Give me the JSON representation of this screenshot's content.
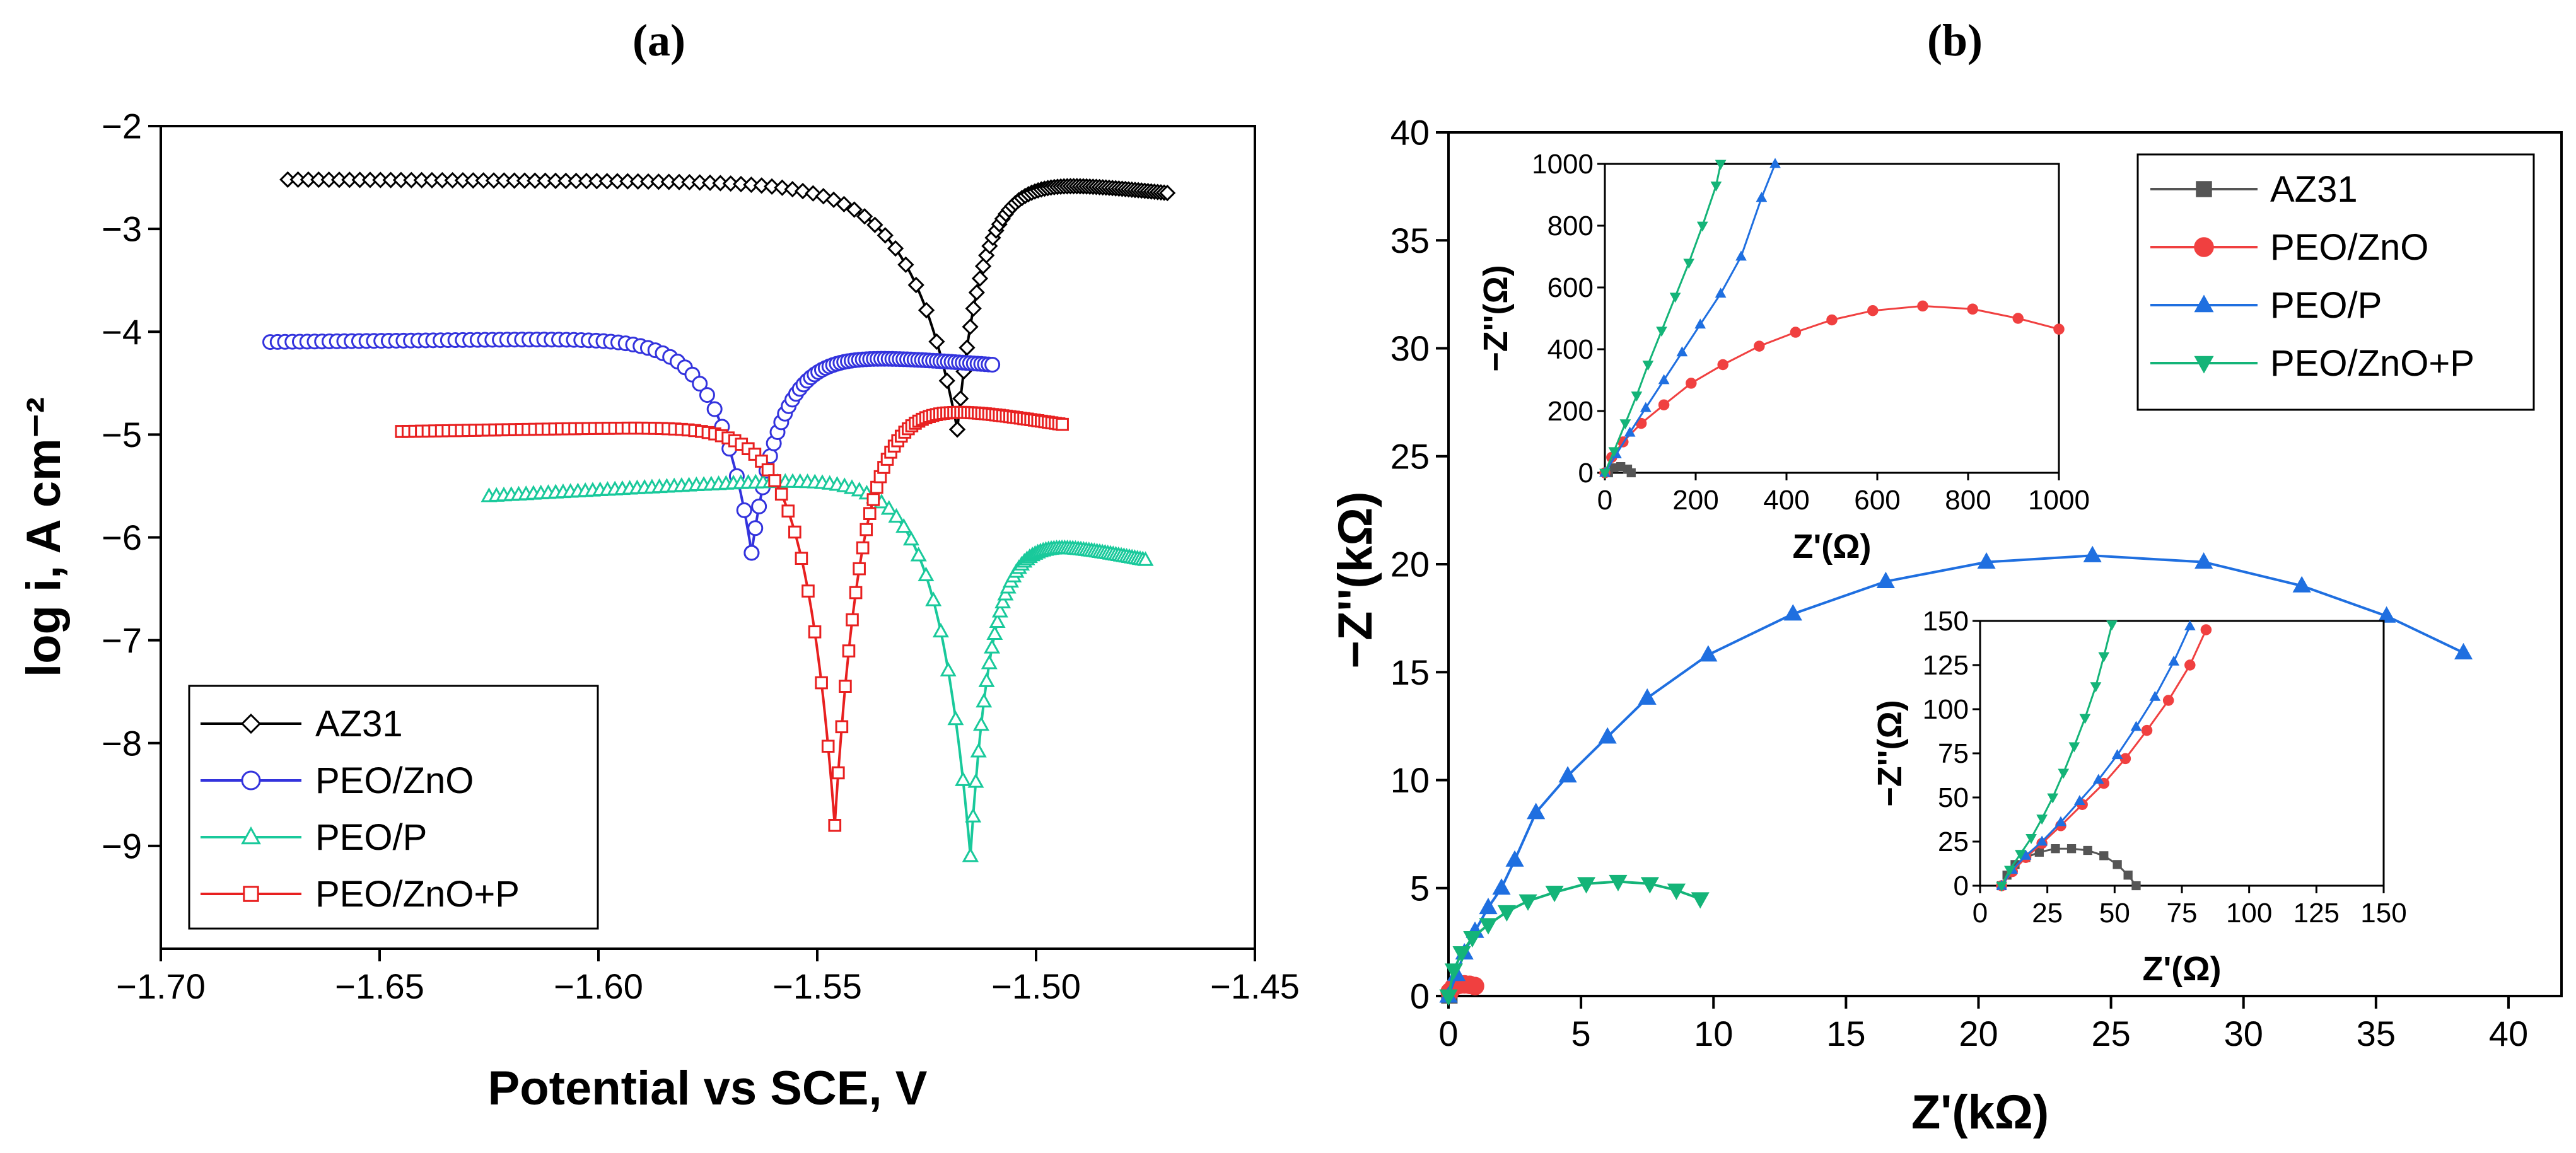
{
  "chart_data": [
    {
      "panel_label": "(a)",
      "type": "line",
      "title": "",
      "xlabel": "Potential vs SCE, V",
      "ylabel": "log i, A cm⁻²",
      "xlim": [
        -1.7,
        -1.45
      ],
      "ylim": [
        -10,
        -2
      ],
      "xticks": [
        -1.7,
        -1.65,
        -1.6,
        -1.55,
        -1.5,
        -1.45
      ],
      "xtick_labels": [
        "−1.70",
        "−1.65",
        "−1.60",
        "−1.55",
        "−1.50",
        "−1.45"
      ],
      "yticks": [
        -2,
        -3,
        -4,
        -5,
        -6,
        -7,
        -8,
        -9
      ],
      "ytick_labels": [
        "−2",
        "−3",
        "−4",
        "−5",
        "−6",
        "−7",
        "−8",
        "−9"
      ],
      "legend": "bottom-left",
      "series": [
        {
          "name": "AZ31",
          "color": "#000000",
          "marker": "diamond",
          "ecorr": -1.518,
          "icorr_log": -4.95,
          "start": [
            -1.671,
            -2.52
          ],
          "end": [
            -1.47,
            -2.65
          ],
          "cathodic_plateau": -2.55,
          "anodic_plateau": -2.45
        },
        {
          "name": "PEO/ZnO",
          "color": "#3333dd",
          "marker": "circle",
          "ecorr": -1.565,
          "icorr_log": -6.15,
          "start": [
            -1.675,
            -4.1
          ],
          "end": [
            -1.51,
            -4.32
          ],
          "cathodic_plateau": -4.05,
          "anodic_plateau": -4.15
        },
        {
          "name": "PEO/P",
          "color": "#19c99b",
          "marker": "triangle",
          "ecorr": -1.515,
          "icorr_log": -9.1,
          "start": [
            -1.625,
            -5.6
          ],
          "end": [
            -1.475,
            -6.22
          ],
          "cathodic_plateau": -5.35,
          "anodic_plateau": -5.9
        },
        {
          "name": "PEO/ZnO+P",
          "color": "#e82020",
          "marker": "square",
          "ecorr": -1.546,
          "icorr_log": -8.8,
          "start": [
            -1.645,
            -4.97
          ],
          "end": [
            -1.494,
            -4.9
          ],
          "cathodic_plateau": -4.9,
          "anodic_plateau": -4.55
        }
      ]
    },
    {
      "panel_label": "(b)",
      "type": "scatter",
      "title": "",
      "xlabel": "Z'(kΩ)",
      "ylabel": "−Z''(kΩ)",
      "xlim": [
        0,
        42
      ],
      "ylim": [
        0,
        40
      ],
      "xticks": [
        0,
        5,
        10,
        15,
        20,
        25,
        30,
        35,
        40
      ],
      "xtick_labels": [
        "0",
        "5",
        "10",
        "15",
        "20",
        "25",
        "30",
        "35",
        "40"
      ],
      "yticks": [
        0,
        5,
        10,
        15,
        20,
        25,
        30,
        35,
        40
      ],
      "ytick_labels": [
        "0",
        "5",
        "10",
        "15",
        "20",
        "25",
        "30",
        "35",
        "40"
      ],
      "legend": "top-right",
      "series": [
        {
          "name": "AZ31",
          "color": "#555555",
          "marker": "square",
          "x": [
            0.008,
            0.02,
            0.035,
            0.05,
            0.058
          ],
          "y": [
            0.0,
            0.016,
            0.02,
            0.012,
            0.0
          ]
        },
        {
          "name": "PEO/ZnO",
          "color": "#f04040",
          "marker": "circle",
          "x": [
            0.05,
            0.2,
            0.4,
            0.6,
            0.8,
            1.0
          ],
          "y": [
            0.2,
            0.42,
            0.52,
            0.54,
            0.52,
            0.46
          ]
        },
        {
          "name": "PEO/P",
          "color": "#1f6fe0",
          "marker": "triangle",
          "x": [
            0.0,
            0.3,
            0.6,
            1.0,
            1.5,
            2.0,
            2.5,
            3.3,
            4.5,
            6.0,
            7.5,
            9.8,
            13.0,
            16.5,
            20.3,
            24.3,
            28.5,
            32.2,
            35.4,
            38.3
          ],
          "y": [
            0.0,
            1.0,
            2.0,
            3.0,
            4.1,
            5.0,
            6.3,
            8.5,
            10.2,
            12.0,
            13.8,
            15.8,
            17.7,
            19.2,
            20.1,
            20.4,
            20.1,
            19.0,
            17.6,
            15.9
          ]
        },
        {
          "name": "PEO/ZnO+P",
          "color": "#14b478",
          "marker": "triangle-down",
          "x": [
            0.0,
            0.2,
            0.5,
            0.9,
            1.5,
            2.2,
            3.0,
            4.0,
            5.2,
            6.4,
            7.6,
            8.6,
            9.5
          ],
          "y": [
            0.0,
            1.2,
            2.0,
            2.7,
            3.3,
            3.9,
            4.4,
            4.8,
            5.2,
            5.3,
            5.2,
            4.9,
            4.5
          ]
        }
      ],
      "insets": [
        {
          "name": "inset-upper",
          "xlabel": "Z'(Ω)",
          "ylabel": "−Z''(Ω)",
          "xlim": [
            0,
            1000
          ],
          "ylim": [
            0,
            1000
          ],
          "xticks": [
            0,
            200,
            400,
            600,
            800,
            1000
          ],
          "yticks": [
            0,
            200,
            400,
            600,
            800,
            1000
          ],
          "series": [
            {
              "name": "AZ31",
              "color": "#555555",
              "x": [
                8,
                20,
                35,
                50,
                58
              ],
              "y": [
                0,
                16,
                20,
                12,
                0
              ]
            },
            {
              "name": "PEO/ZnO",
              "color": "#f04040",
              "x": [
                0,
                15,
                40,
                80,
                130,
                190,
                260,
                340,
                420,
                500,
                590,
                700,
                810,
                910,
                1000
              ],
              "y": [
                0,
                50,
                100,
                160,
                220,
                290,
                350,
                410,
                455,
                495,
                525,
                540,
                530,
                500,
                465
              ]
            },
            {
              "name": "PEO/P",
              "color": "#1f6fe0",
              "x": [
                0,
                25,
                55,
                90,
                130,
                170,
                210,
                255,
                300,
                345,
                375
              ],
              "y": [
                0,
                60,
                130,
                210,
                300,
                390,
                480,
                580,
                700,
                890,
                1000
              ]
            },
            {
              "name": "PEO/ZnO+P",
              "color": "#14b478",
              "x": [
                0,
                20,
                45,
                70,
                95,
                125,
                155,
                185,
                215,
                245,
                255
              ],
              "y": [
                0,
                70,
                160,
                250,
                350,
                460,
                570,
                680,
                800,
                930,
                1000
              ]
            }
          ]
        },
        {
          "name": "inset-lower",
          "xlabel": "Z'(Ω)",
          "ylabel": "−Z''(Ω)",
          "xlim": [
            0,
            150
          ],
          "ylim": [
            0,
            150
          ],
          "xticks": [
            0,
            25,
            50,
            75,
            100,
            125,
            150
          ],
          "yticks": [
            0,
            25,
            50,
            75,
            100,
            125,
            150
          ],
          "series": [
            {
              "name": "AZ31",
              "color": "#555555",
              "x": [
                8,
                10,
                13,
                17,
                22,
                28,
                34,
                40,
                46,
                51,
                55,
                58
              ],
              "y": [
                0,
                6,
                12,
                16,
                19,
                21,
                21,
                20,
                17,
                12,
                6,
                0
              ]
            },
            {
              "name": "PEO/ZnO",
              "color": "#f04040",
              "x": [
                8,
                12,
                17,
                23,
                30,
                38,
                46,
                54,
                62,
                70,
                78,
                84
              ],
              "y": [
                0,
                8,
                16,
                24,
                34,
                46,
                58,
                72,
                88,
                105,
                125,
                145
              ]
            },
            {
              "name": "PEO/P",
              "color": "#1f6fe0",
              "x": [
                8,
                12,
                17,
                23,
                30,
                37,
                44,
                51,
                58,
                65,
                72,
                78
              ],
              "y": [
                0,
                9,
                17,
                25,
                36,
                48,
                60,
                74,
                90,
                107,
                127,
                147
              ]
            },
            {
              "name": "PEO/ZnO+P",
              "color": "#14b478",
              "x": [
                8,
                11,
                15,
                19,
                23,
                27,
                31,
                35,
                39,
                43,
                46,
                49
              ],
              "y": [
                0,
                9,
                18,
                27,
                38,
                50,
                64,
                79,
                95,
                113,
                130,
                148
              ]
            }
          ]
        }
      ]
    }
  ]
}
